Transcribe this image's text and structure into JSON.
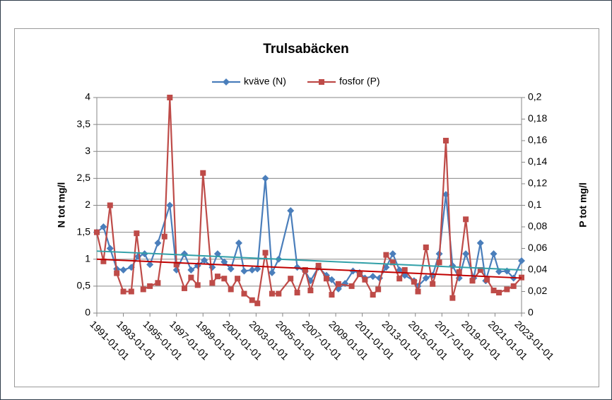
{
  "chart_data": {
    "type": "line",
    "title": "Trulsabäcken",
    "y_label": "N tot mg/l",
    "y2_label": "P tot mg/l",
    "xlim": [
      1991,
      2023
    ],
    "xticks": [
      {
        "value": 1991,
        "label": "1991-01-01"
      },
      {
        "value": 1993,
        "label": "1993-01-01"
      },
      {
        "value": 1995,
        "label": "1995-01-01"
      },
      {
        "value": 1997,
        "label": "1997-01-01"
      },
      {
        "value": 1999,
        "label": "1999-01-01"
      },
      {
        "value": 2001,
        "label": "2001-01-01"
      },
      {
        "value": 2003,
        "label": "2003-01-01"
      },
      {
        "value": 2005,
        "label": "2005-01-01"
      },
      {
        "value": 2007,
        "label": "2007-01-01"
      },
      {
        "value": 2009,
        "label": "2009-01-01"
      },
      {
        "value": 2011,
        "label": "2011-01-01"
      },
      {
        "value": 2013,
        "label": "2013-01-01"
      },
      {
        "value": 2015,
        "label": "2015-01-01"
      },
      {
        "value": 2017,
        "label": "2017-01-01"
      },
      {
        "value": 2019,
        "label": "2019-01-01"
      },
      {
        "value": 2021,
        "label": "2021-01-01"
      },
      {
        "value": 2023,
        "label": "2023-01-01"
      }
    ],
    "ylim": [
      0,
      4
    ],
    "yticks": [
      0,
      {
        "value": 0.5,
        "label": "0,5"
      },
      1,
      {
        "value": 1.5,
        "label": "1,5"
      },
      2,
      {
        "value": 2.5,
        "label": "2,5"
      },
      3,
      {
        "value": 3.5,
        "label": "3,5"
      },
      4
    ],
    "y2lim": [
      0,
      0.2
    ],
    "y2ticks": [
      0,
      {
        "value": 0.02,
        "label": "0,02"
      },
      {
        "value": 0.04,
        "label": "0,04"
      },
      {
        "value": 0.06,
        "label": "0,06"
      },
      {
        "value": 0.08,
        "label": "0,08"
      },
      {
        "value": 0.1,
        "label": "0,1"
      },
      {
        "value": 0.12,
        "label": "0,12"
      },
      {
        "value": 0.14,
        "label": "0,14"
      },
      {
        "value": 0.16,
        "label": "0,16"
      },
      {
        "value": 0.18,
        "label": "0,18"
      },
      {
        "value": 0.2,
        "label": "0,2"
      }
    ],
    "grid": true,
    "legend": "top",
    "series": [
      {
        "name": "kväve (N)",
        "color": "#4a7ebb",
        "marker": "diamond",
        "x": [
          1991.0,
          1991.5,
          1992.0,
          1992.5,
          1993.0,
          1993.6,
          1994.1,
          1994.6,
          1995.0,
          1995.6,
          1996.5,
          1997.0,
          1997.6,
          1998.1,
          1998.6,
          1999.1,
          1999.7,
          2000.1,
          2000.6,
          2001.1,
          2001.7,
          2002.1,
          2002.7,
          2003.1,
          2003.7,
          2004.2,
          2004.7,
          2005.6,
          2006.1,
          2006.7,
          2007.1,
          2007.7,
          2008.3,
          2008.7,
          2009.2,
          2009.7,
          2010.3,
          2010.8,
          2011.2,
          2011.8,
          2012.3,
          2012.8,
          2013.3,
          2013.8,
          2014.2,
          2014.9,
          2015.2,
          2015.8,
          2016.3,
          2016.8,
          2017.3,
          2017.8,
          2018.3,
          2018.8,
          2019.4,
          2019.9,
          2020.3,
          2020.9,
          2021.3,
          2021.9,
          2022.4,
          2023.0
        ],
        "values": [
          1.5,
          1.6,
          1.2,
          0.82,
          0.8,
          0.85,
          1.05,
          1.1,
          0.9,
          1.3,
          2.0,
          0.8,
          1.1,
          0.8,
          0.88,
          0.98,
          0.85,
          1.1,
          0.95,
          0.82,
          1.3,
          0.78,
          0.8,
          0.82,
          2.5,
          0.75,
          1.0,
          1.9,
          0.85,
          0.78,
          0.6,
          0.85,
          0.7,
          0.62,
          0.45,
          0.55,
          0.78,
          0.75,
          0.65,
          0.68,
          0.65,
          0.85,
          1.1,
          0.8,
          0.7,
          0.6,
          0.5,
          0.65,
          0.7,
          1.1,
          2.2,
          0.88,
          0.65,
          1.1,
          0.65,
          1.3,
          0.6,
          1.1,
          0.77,
          0.78,
          0.65,
          0.97
        ]
      },
      {
        "name": "fosfor (P)",
        "color": "#be4b48",
        "marker": "square",
        "axis": "y2",
        "x": [
          1991.0,
          1991.5,
          1992.0,
          1992.5,
          1993.0,
          1993.6,
          1994.0,
          1994.5,
          1995.0,
          1995.6,
          1996.1,
          1996.5,
          1997.0,
          1997.6,
          1998.1,
          1998.6,
          1999.0,
          1999.7,
          2000.1,
          2000.6,
          2001.1,
          2001.6,
          2002.1,
          2002.7,
          2003.1,
          2003.7,
          2004.2,
          2004.7,
          2005.6,
          2006.1,
          2006.7,
          2007.1,
          2007.7,
          2008.3,
          2008.7,
          2009.2,
          2010.2,
          2010.8,
          2011.2,
          2011.8,
          2012.2,
          2012.8,
          2013.3,
          2013.8,
          2014.2,
          2014.9,
          2015.2,
          2015.8,
          2016.3,
          2016.8,
          2017.3,
          2017.8,
          2018.3,
          2018.8,
          2019.3,
          2019.9,
          2020.4,
          2020.9,
          2021.3,
          2021.9,
          2022.4,
          2023.0
        ],
        "values": [
          0.075,
          0.048,
          0.1,
          0.037,
          0.02,
          0.02,
          0.074,
          0.022,
          0.025,
          0.028,
          0.071,
          0.2,
          0.045,
          0.023,
          0.033,
          0.026,
          0.13,
          0.028,
          0.034,
          0.032,
          0.022,
          0.032,
          0.018,
          0.012,
          0.009,
          0.056,
          0.018,
          0.018,
          0.032,
          0.019,
          0.04,
          0.021,
          0.044,
          0.032,
          0.017,
          0.027,
          0.025,
          0.036,
          0.031,
          0.017,
          0.022,
          0.054,
          0.047,
          0.032,
          0.04,
          0.029,
          0.02,
          0.061,
          0.027,
          0.047,
          0.16,
          0.014,
          0.038,
          0.087,
          0.03,
          0.04,
          0.031,
          0.021,
          0.019,
          0.022,
          0.025,
          0.033
        ]
      }
    ],
    "trendlines": [
      {
        "color": "#31a0a8",
        "values": [
          1.15,
          0.8
        ]
      },
      {
        "color": "#c00000",
        "axis": "y2",
        "values": [
          0.05,
          0.0325
        ]
      }
    ]
  }
}
